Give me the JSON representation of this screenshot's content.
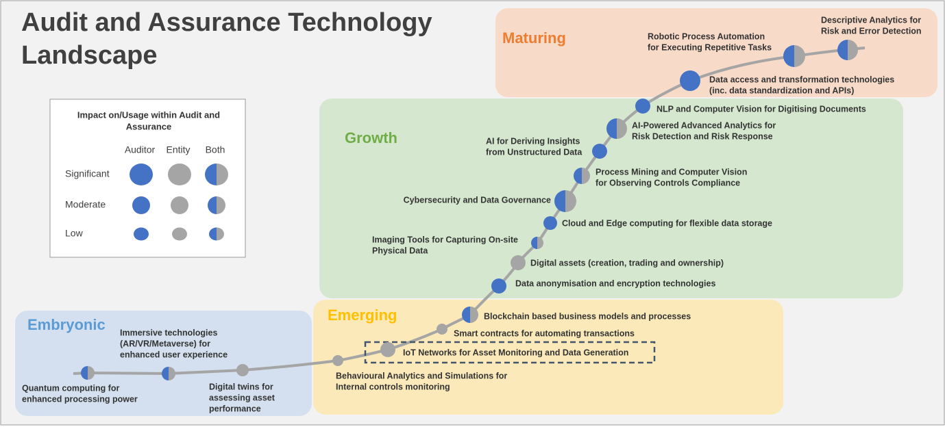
{
  "title": {
    "lines": [
      "Audit and Assurance Technology",
      "Landscape"
    ]
  },
  "legend": {
    "title": [
      "Impact on/Usage within Audit and",
      "Assurance"
    ],
    "columns": [
      "Auditor",
      "Entity",
      "Both"
    ],
    "rows": [
      "Significant",
      "Moderate",
      "Low"
    ]
  },
  "stages": [
    "Maturing",
    "Growth",
    "Emerging",
    "Embryonic"
  ],
  "nodes": [
    {
      "lines": [
        "Quantum computing for",
        "enhanced processing power"
      ]
    },
    {
      "lines": [
        "Immersive technologies",
        "(AR/VR/Metaverse) for",
        "enhanced user experience"
      ]
    },
    {
      "lines": [
        "Digital twins for",
        "assessing asset",
        "performance"
      ]
    },
    {
      "lines": [
        "Behavioural Analytics and Simulations for",
        "Internal controls monitoring"
      ]
    },
    {
      "lines": [
        "IoT Networks for Asset Monitoring and Data Generation"
      ]
    },
    {
      "lines": [
        "Smart contracts for automating transactions"
      ]
    },
    {
      "lines": [
        "Blockchain based business models and processes"
      ]
    },
    {
      "lines": [
        "Data anonymisation and encryption technologies"
      ]
    },
    {
      "lines": [
        "Digital assets (creation, trading and ownership)"
      ]
    },
    {
      "lines": [
        "Imaging Tools for Capturing On-site",
        "Physical Data"
      ]
    },
    {
      "lines": [
        "Cloud and Edge computing for flexible data storage"
      ]
    },
    {
      "lines": [
        "Cybersecurity and Data Governance"
      ]
    },
    {
      "lines": [
        "Process Mining and Computer Vision",
        "for Observing Controls Compliance"
      ]
    },
    {
      "lines": [
        "AI for Deriving Insights",
        "from Unstructured Data"
      ]
    },
    {
      "lines": [
        "AI-Powered Advanced Analytics for",
        "Risk Detection and Risk Response"
      ]
    },
    {
      "lines": [
        "NLP and Computer Vision for Digitising Documents"
      ]
    },
    {
      "lines": [
        "Data access and transformation technologies",
        "(inc. data standardization and APIs)"
      ]
    },
    {
      "lines": [
        "Robotic Process Automation",
        "for Executing Repetitive Tasks"
      ]
    },
    {
      "lines": [
        "Descriptive Analytics for",
        "Risk and Error Detection"
      ]
    }
  ]
}
